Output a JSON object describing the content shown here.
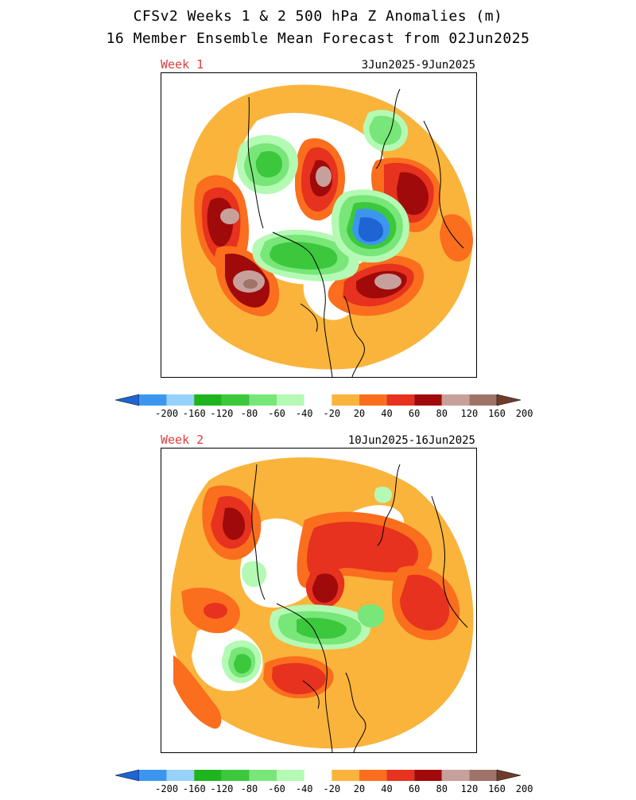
{
  "title_line1": "CFSv2 Weeks 1 & 2 500 hPa Z Anomalies (m)",
  "title_line2": "16 Member Ensemble Mean Forecast from 02Jun2025",
  "panels": [
    {
      "label": "Week 1",
      "dates": "3Jun2025-9Jun2025"
    },
    {
      "label": "Week 2",
      "dates": "10Jun2025-16Jun2025"
    }
  ],
  "colorbar": {
    "tick_labels": [
      "-200",
      "-160",
      "-120",
      "-80",
      "-60",
      "-40",
      "-20",
      "20",
      "40",
      "60",
      "80",
      "120",
      "160",
      "200"
    ],
    "colors": [
      "#1e64d2",
      "#3c96f0",
      "#96d2fa",
      "#1eb41e",
      "#3cc83c",
      "#78e678",
      "#b4fab4",
      "#ffffff",
      "#fab43c",
      "#fa6e1e",
      "#e6321e",
      "#a00a0a",
      "#c8a09b",
      "#a07369",
      "#6e3c28"
    ]
  },
  "palette": {
    "orange_light": "#fab43c",
    "orange": "#fa6e1e",
    "red": "#e6321e",
    "dark_red": "#a00a0a",
    "rose": "#c8a09b",
    "brown_rose": "#a07369",
    "green_light": "#b4fab4",
    "green": "#78e678",
    "green_mid": "#3cc83c",
    "green_dark": "#1eb41e",
    "blue_light": "#3c96f0",
    "blue": "#1e64d2"
  }
}
